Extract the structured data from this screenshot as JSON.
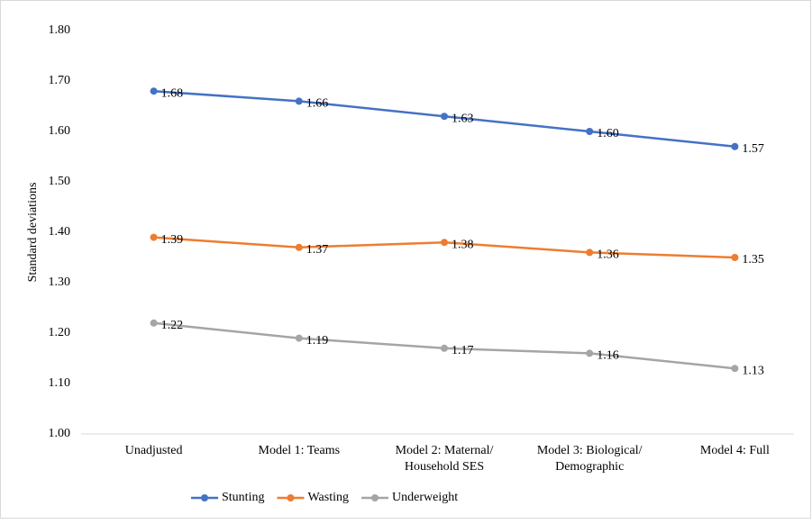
{
  "chart_data": {
    "type": "line",
    "y_label": "Standard deviations",
    "categories": [
      "Unadjusted",
      "Model 1: Teams",
      "Model 2: Maternal/\nHousehold SES",
      "Model 3: Biological/\nDemographic",
      "Model 4: Full"
    ],
    "series": [
      {
        "name": "Stunting",
        "color": "#4472c4",
        "values": [
          1.68,
          1.66,
          1.63,
          1.6,
          1.57
        ],
        "value_labels": [
          "1.68",
          "1.66",
          "1.63",
          "1.60",
          "1.57"
        ]
      },
      {
        "name": "Wasting",
        "color": "#ed7d31",
        "values": [
          1.39,
          1.37,
          1.38,
          1.36,
          1.35
        ],
        "value_labels": [
          "1.39",
          "1.37",
          "1.38",
          "1.36",
          "1.35"
        ]
      },
      {
        "name": "Underweight",
        "color": "#a5a5a5",
        "values": [
          1.22,
          1.19,
          1.17,
          1.16,
          1.13
        ],
        "value_labels": [
          "1.22",
          "1.19",
          "1.17",
          "1.16",
          "1.13"
        ]
      }
    ],
    "ylim": [
      1.0,
      1.8
    ],
    "yticks": [
      {
        "value": 1.0,
        "label": "1.00"
      },
      {
        "value": 1.1,
        "label": "1.10"
      },
      {
        "value": 1.2,
        "label": "1.20"
      },
      {
        "value": 1.3,
        "label": "1.30"
      },
      {
        "value": 1.4,
        "label": "1.40"
      },
      {
        "value": 1.5,
        "label": "1.50"
      },
      {
        "value": 1.6,
        "label": "1.60"
      },
      {
        "value": 1.7,
        "label": "1.70"
      },
      {
        "value": 1.8,
        "label": "1.80"
      }
    ],
    "grid": false,
    "legend": "bottom"
  }
}
